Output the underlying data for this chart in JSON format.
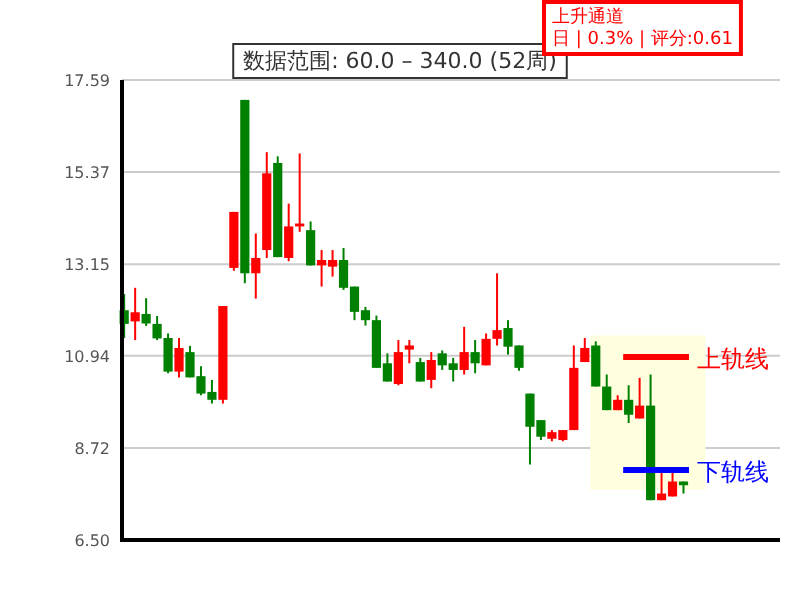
{
  "chart_data": {
    "type": "candlestick",
    "categories": [
      null,
      null,
      null,
      null,
      null,
      null,
      null,
      null,
      null,
      null,
      null,
      null,
      null,
      null,
      null,
      null,
      null,
      null,
      null,
      null,
      null,
      null,
      null,
      null,
      null,
      null,
      null,
      null,
      null,
      null,
      null,
      null,
      null,
      null,
      null,
      null,
      null,
      null,
      null,
      null,
      null,
      null,
      null,
      null,
      null,
      null,
      null,
      null,
      null,
      null,
      null,
      null
    ],
    "ohlc": [
      [
        12.04,
        12.43,
        11.37,
        11.71
      ],
      [
        11.77,
        12.58,
        11.32,
        11.99
      ],
      [
        11.95,
        12.33,
        11.66,
        11.72
      ],
      [
        11.71,
        11.9,
        11.32,
        11.36
      ],
      [
        11.37,
        11.48,
        10.52,
        10.56
      ],
      [
        10.56,
        11.37,
        10.42,
        11.13
      ],
      [
        11.03,
        11.18,
        10.42,
        10.42
      ],
      [
        10.45,
        10.69,
        9.99,
        10.03
      ],
      [
        10.07,
        10.36,
        9.79,
        9.88
      ],
      [
        9.88,
        12.14,
        9.79,
        12.14
      ],
      [
        13.06,
        14.41,
        12.99,
        14.41
      ],
      [
        17.11,
        17.11,
        12.69,
        12.93
      ],
      [
        12.93,
        13.89,
        12.32,
        13.3
      ],
      [
        13.49,
        15.85,
        13.3,
        15.34
      ],
      [
        15.59,
        15.75,
        13.32,
        13.32
      ],
      [
        13.3,
        14.61,
        13.22,
        14.06
      ],
      [
        14.06,
        15.82,
        13.93,
        14.13
      ],
      [
        13.97,
        14.18,
        13.12,
        13.12
      ],
      [
        13.12,
        13.49,
        12.61,
        13.25
      ],
      [
        13.09,
        13.49,
        12.85,
        13.25
      ],
      [
        13.25,
        13.54,
        12.53,
        12.58
      ],
      [
        12.61,
        12.61,
        11.8,
        12.0
      ],
      [
        12.04,
        12.12,
        11.67,
        11.8
      ],
      [
        11.8,
        11.91,
        10.65,
        10.65
      ],
      [
        10.76,
        11.0,
        10.32,
        10.32
      ],
      [
        10.26,
        11.32,
        10.23,
        11.03
      ],
      [
        11.09,
        11.32,
        10.76,
        11.19
      ],
      [
        10.79,
        10.89,
        10.32,
        10.32
      ],
      [
        10.36,
        11.03,
        10.16,
        10.84
      ],
      [
        11.0,
        11.07,
        10.6,
        10.71
      ],
      [
        10.76,
        10.89,
        10.32,
        10.6
      ],
      [
        10.6,
        11.64,
        10.49,
        11.03
      ],
      [
        11.03,
        11.32,
        10.52,
        10.76
      ],
      [
        10.71,
        11.48,
        10.71,
        11.35
      ],
      [
        11.35,
        12.93,
        11.19,
        11.56
      ],
      [
        11.61,
        11.8,
        10.97,
        11.16
      ],
      [
        11.19,
        11.19,
        10.58,
        10.65
      ],
      [
        10.03,
        10.03,
        8.32,
        9.23
      ],
      [
        9.39,
        9.39,
        8.91,
        8.99
      ],
      [
        8.94,
        9.15,
        8.88,
        9.1
      ],
      [
        8.91,
        9.15,
        8.88,
        9.15
      ],
      [
        9.15,
        11.19,
        9.15,
        10.65
      ],
      [
        10.79,
        11.37,
        10.79,
        11.13
      ],
      [
        11.19,
        11.29,
        10.2,
        10.2
      ],
      [
        10.2,
        10.49,
        9.63,
        9.63
      ],
      [
        9.63,
        9.99,
        9.63,
        9.88
      ],
      [
        9.88,
        10.23,
        9.32,
        9.52
      ],
      [
        9.43,
        10.41,
        9.43,
        9.74
      ],
      [
        9.74,
        10.49,
        7.46,
        7.46
      ],
      [
        7.46,
        8.19,
        7.46,
        7.62
      ],
      [
        7.55,
        8.14,
        7.55,
        7.91
      ],
      [
        7.91,
        7.91,
        7.62,
        7.82
      ]
    ],
    "colors": [
      "#008000",
      "#ff0000",
      "#008000",
      "#008000",
      "#008000",
      "#ff0000",
      "#008000",
      "#008000",
      "#008000",
      "#ff0000",
      "#ff0000",
      "#008000",
      "#ff0000",
      "#ff0000",
      "#008000",
      "#ff0000",
      "#ff0000",
      "#008000",
      "#ff0000",
      "#ff0000",
      "#008000",
      "#008000",
      "#008000",
      "#008000",
      "#008000",
      "#ff0000",
      "#ff0000",
      "#008000",
      "#ff0000",
      "#008000",
      "#008000",
      "#ff0000",
      "#008000",
      "#ff0000",
      "#ff0000",
      "#008000",
      "#008000",
      "#008000",
      "#008000",
      "#ff0000",
      "#ff0000",
      "#ff0000",
      "#ff0000",
      "#008000",
      "#008000",
      "#ff0000",
      "#008000",
      "#ff0000",
      "#008000",
      "#ff0000",
      "#ff0000",
      "#008000"
    ],
    "ylim": [
      6.5,
      17.59
    ],
    "yticks": [
      {
        "value": 6.5,
        "label": "6.50"
      },
      8.72,
      10.94,
      13.15,
      15.37,
      17.59
    ],
    "grid": "y",
    "ref_lines": [
      {
        "axis": "y",
        "value": 10.91,
        "label": "上轨线",
        "color": "#ff0000"
      },
      {
        "axis": "y",
        "value": 8.19,
        "label": "下轨线",
        "color": "#0000ff"
      }
    ],
    "bands": [
      {
        "axis": "y",
        "from": 7.71,
        "to": 11.43,
        "color": "#ffffe0"
      }
    ],
    "annotations": [
      "数据范围: 60.0 – 340.0 (52周)",
      "上升通道",
      "日 | 0.3% | 评分:0.61"
    ]
  }
}
